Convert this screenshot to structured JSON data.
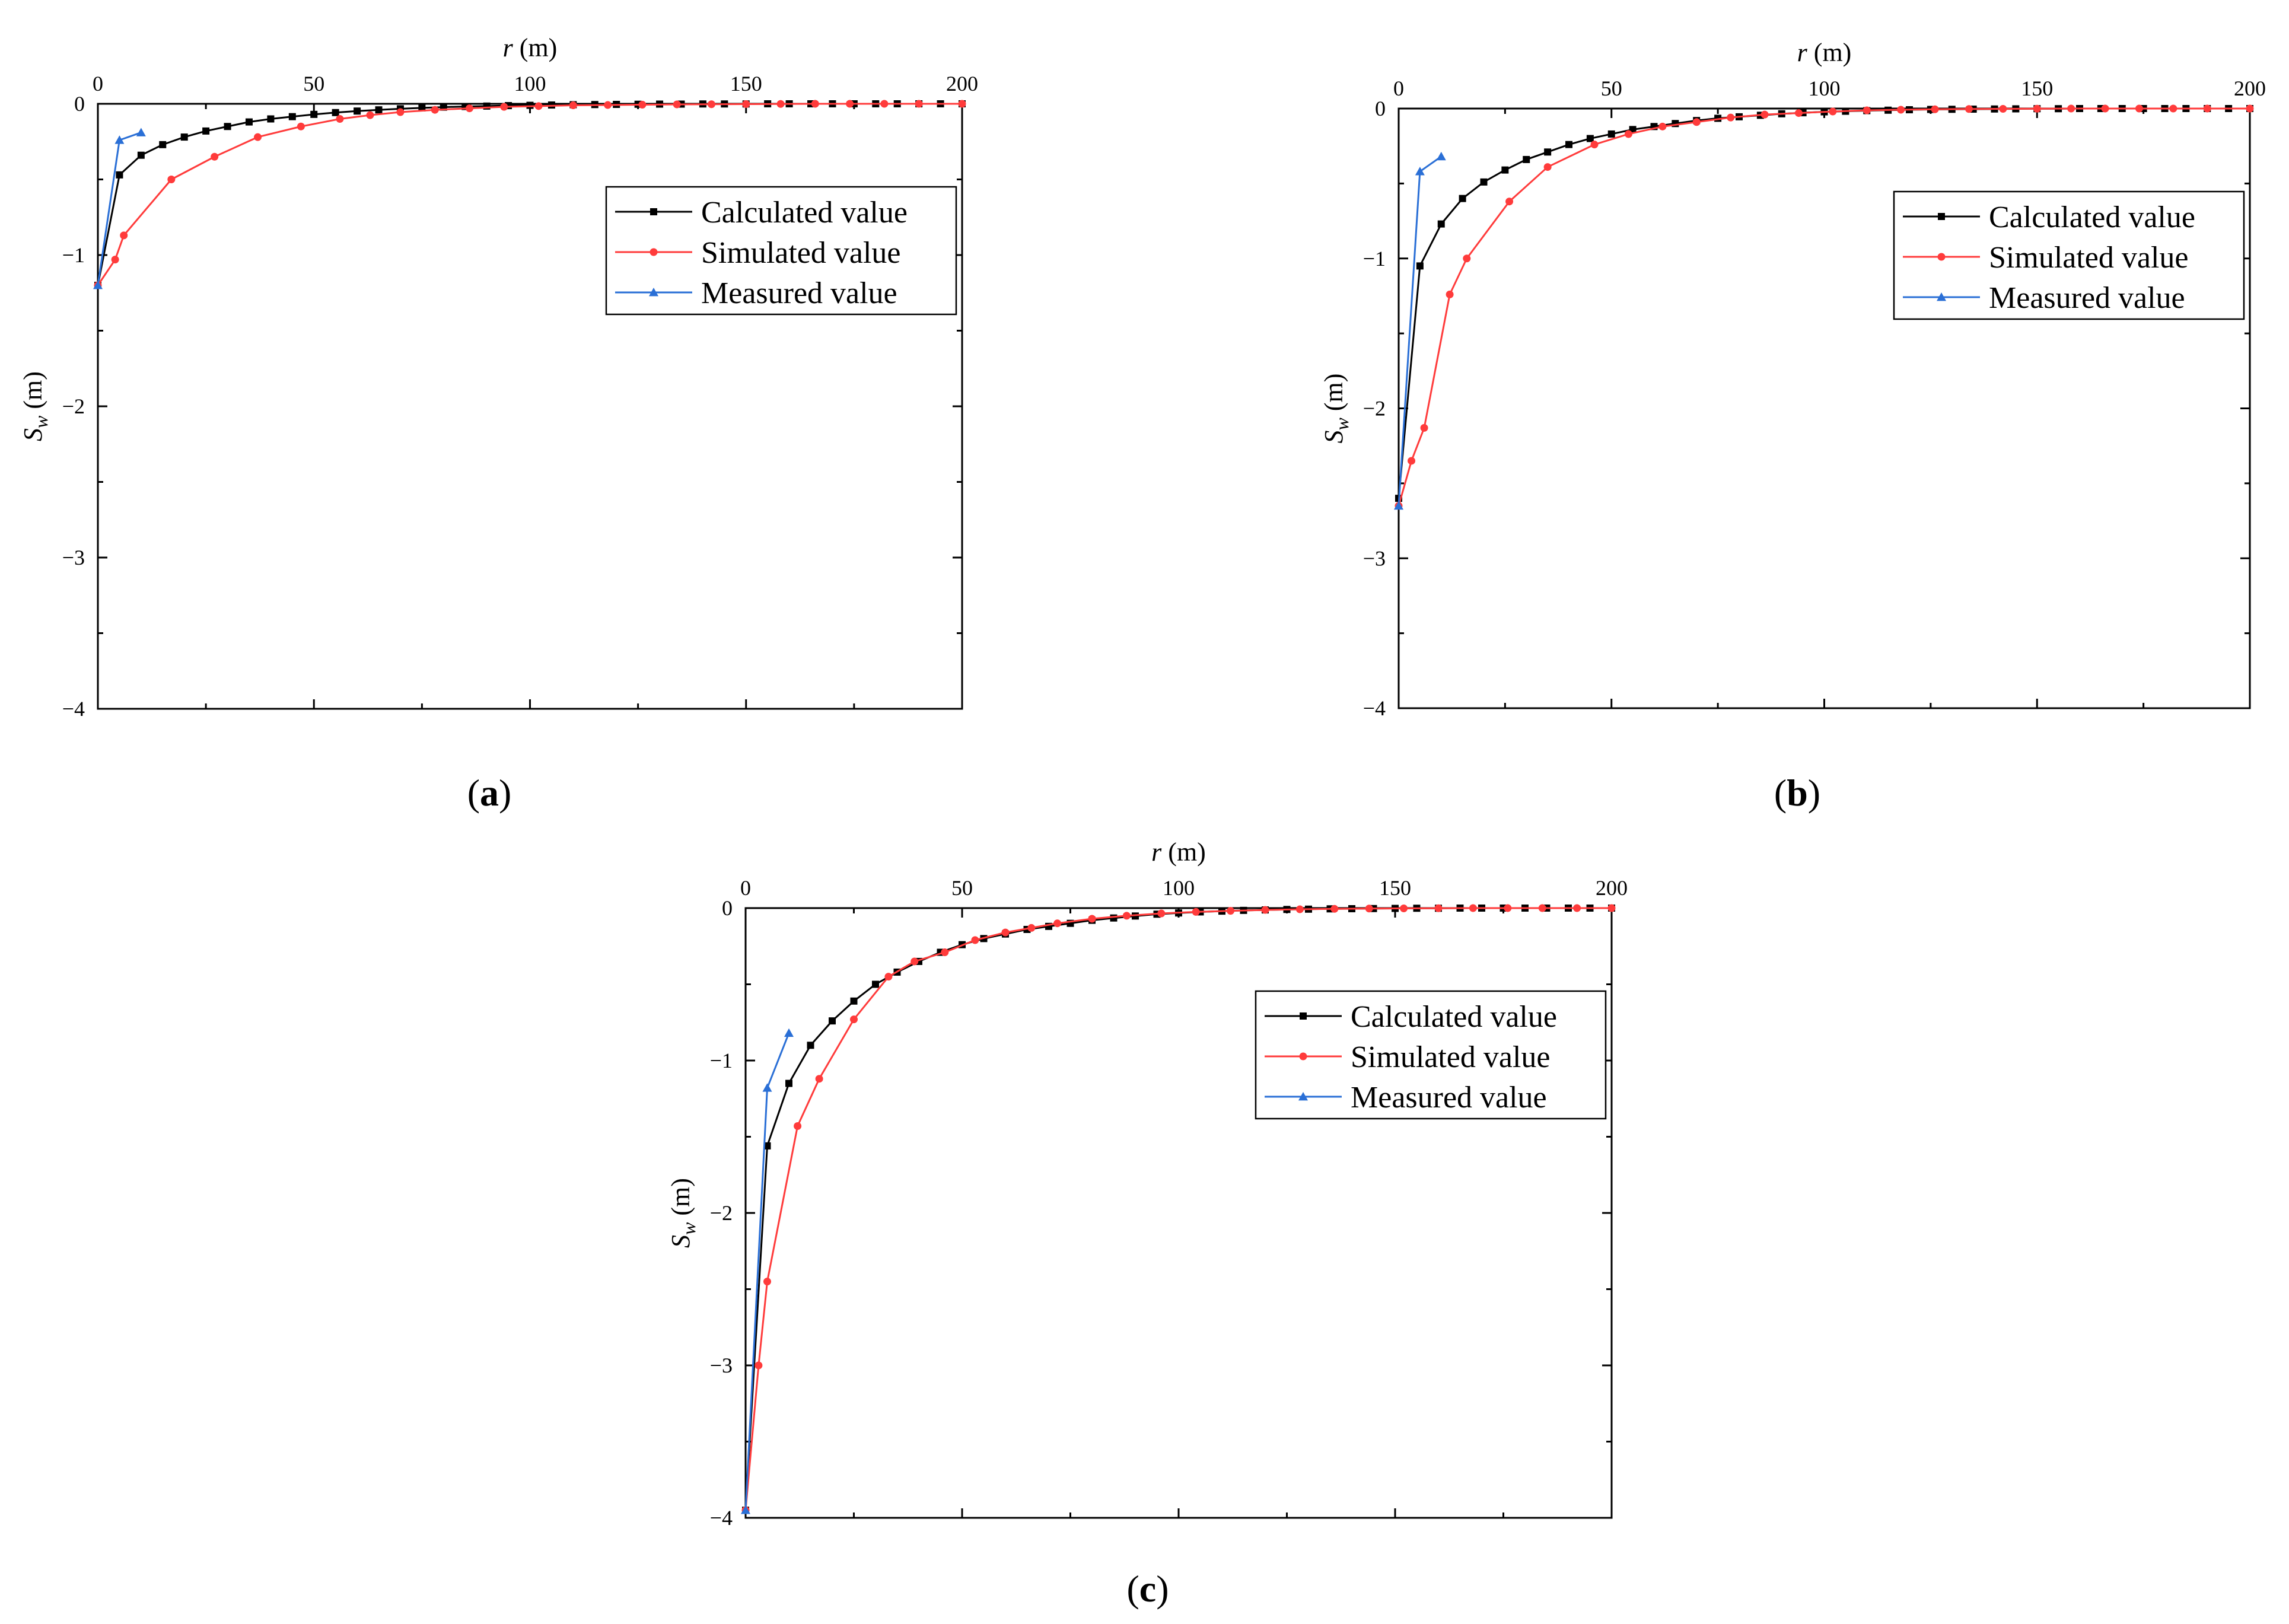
{
  "chart_data": [
    {
      "type": "line",
      "panel_label": "(a)",
      "xlabel": "r (m)",
      "ylabel": "Sw (m)",
      "xlim": [
        0,
        200
      ],
      "ylim": [
        -4,
        0
      ],
      "x_ticks": [
        0,
        50,
        100,
        150,
        200
      ],
      "y_ticks": [
        0,
        -1,
        -2,
        -3,
        -4
      ],
      "x_axis_position": "top",
      "legend_position": "upper-right",
      "grid": false,
      "series": [
        {
          "name": "Calculated value",
          "color": "#000000",
          "marker": "square",
          "x": [
            0,
            5,
            10,
            15,
            20,
            25,
            30,
            35,
            40,
            45,
            50,
            55,
            60,
            65,
            70,
            75,
            80,
            85,
            90,
            95,
            100,
            105,
            110,
            115,
            120,
            125,
            130,
            135,
            140,
            145,
            150,
            155,
            160,
            165,
            170,
            175,
            180,
            185,
            190,
            195,
            200
          ],
          "y": [
            -1.2,
            -0.47,
            -0.34,
            -0.27,
            -0.22,
            -0.18,
            -0.15,
            -0.12,
            -0.1,
            -0.085,
            -0.07,
            -0.058,
            -0.048,
            -0.04,
            -0.033,
            -0.027,
            -0.022,
            -0.018,
            -0.015,
            -0.012,
            -0.01,
            -0.008,
            -0.006,
            -0.005,
            -0.004,
            -0.003,
            -0.002,
            -0.002,
            -0.001,
            -0.001,
            -0.001,
            0,
            0,
            0,
            0,
            0,
            0,
            0,
            0,
            0,
            0
          ]
        },
        {
          "name": "Simulated value",
          "color": "#ff3b3b",
          "marker": "circle",
          "x": [
            0,
            4,
            6,
            17,
            27,
            37,
            47,
            56,
            63,
            70,
            78,
            86,
            94,
            102,
            110,
            118,
            126,
            134,
            142,
            150,
            158,
            166,
            174,
            182,
            190,
            200
          ],
          "y": [
            -1.2,
            -1.03,
            -0.87,
            -0.5,
            -0.35,
            -0.22,
            -0.15,
            -0.1,
            -0.075,
            -0.055,
            -0.04,
            -0.03,
            -0.02,
            -0.015,
            -0.01,
            -0.008,
            -0.006,
            -0.004,
            -0.003,
            -0.002,
            -0.001,
            0,
            0,
            0,
            0,
            0
          ]
        },
        {
          "name": "Measured value",
          "color": "#2a6fd6",
          "marker": "triangle",
          "x": [
            0,
            5,
            10
          ],
          "y": [
            -1.2,
            -0.24,
            -0.19
          ]
        }
      ]
    },
    {
      "type": "line",
      "panel_label": "(b)",
      "xlabel": "r (m)",
      "ylabel": "Sw (m)",
      "xlim": [
        0,
        200
      ],
      "ylim": [
        -4,
        0
      ],
      "x_ticks": [
        0,
        50,
        100,
        150,
        200
      ],
      "y_ticks": [
        0,
        -1,
        -2,
        -3,
        -4
      ],
      "x_axis_position": "top",
      "legend_position": "upper-right",
      "grid": false,
      "series": [
        {
          "name": "Calculated value",
          "color": "#000000",
          "marker": "square",
          "x": [
            0,
            5,
            10,
            15,
            20,
            25,
            30,
            35,
            40,
            45,
            50,
            55,
            60,
            65,
            70,
            75,
            80,
            85,
            90,
            95,
            100,
            105,
            110,
            115,
            120,
            125,
            130,
            135,
            140,
            145,
            150,
            155,
            160,
            165,
            170,
            175,
            180,
            185,
            190,
            195,
            200
          ],
          "y": [
            -2.6,
            -1.05,
            -0.77,
            -0.6,
            -0.49,
            -0.41,
            -0.34,
            -0.29,
            -0.24,
            -0.2,
            -0.17,
            -0.14,
            -0.12,
            -0.1,
            -0.08,
            -0.065,
            -0.055,
            -0.045,
            -0.035,
            -0.028,
            -0.022,
            -0.018,
            -0.014,
            -0.011,
            -0.008,
            -0.006,
            -0.005,
            -0.004,
            -0.003,
            -0.002,
            -0.001,
            -0.001,
            0,
            0,
            0,
            0,
            0,
            0,
            0,
            0,
            0
          ]
        },
        {
          "name": "Simulated value",
          "color": "#ff3b3b",
          "marker": "circle",
          "x": [
            0,
            3,
            6,
            12,
            16,
            26,
            35,
            46,
            54,
            62,
            70,
            78,
            86,
            94,
            102,
            110,
            118,
            126,
            134,
            142,
            150,
            158,
            166,
            174,
            182,
            190,
            200
          ],
          "y": [
            -2.65,
            -2.35,
            -2.13,
            -1.24,
            -1.0,
            -0.62,
            -0.39,
            -0.24,
            -0.17,
            -0.12,
            -0.09,
            -0.06,
            -0.04,
            -0.03,
            -0.02,
            -0.012,
            -0.008,
            -0.005,
            -0.003,
            -0.002,
            -0.001,
            0,
            0,
            0,
            0,
            0,
            0
          ]
        },
        {
          "name": "Measured value",
          "color": "#2a6fd6",
          "marker": "triangle",
          "x": [
            0,
            5,
            10
          ],
          "y": [
            -2.65,
            -0.42,
            -0.32
          ]
        }
      ]
    },
    {
      "type": "line",
      "panel_label": "(c)",
      "xlabel": "r (m)",
      "ylabel": "Sw (m)",
      "xlim": [
        0,
        200
      ],
      "ylim": [
        -4,
        0
      ],
      "x_ticks": [
        0,
        50,
        100,
        150,
        200
      ],
      "y_ticks": [
        0,
        -1,
        -2,
        -3,
        -4
      ],
      "x_axis_position": "top",
      "legend_position": "upper-right",
      "grid": false,
      "series": [
        {
          "name": "Calculated value",
          "color": "#000000",
          "marker": "square",
          "x": [
            0,
            5,
            10,
            15,
            20,
            25,
            30,
            35,
            40,
            45,
            50,
            55,
            60,
            65,
            70,
            75,
            80,
            85,
            90,
            95,
            100,
            105,
            110,
            115,
            120,
            125,
            130,
            135,
            140,
            145,
            150,
            155,
            160,
            165,
            170,
            175,
            180,
            185,
            190,
            195,
            200
          ],
          "y": [
            -3.95,
            -1.56,
            -1.15,
            -0.9,
            -0.74,
            -0.61,
            -0.5,
            -0.42,
            -0.35,
            -0.29,
            -0.24,
            -0.2,
            -0.17,
            -0.14,
            -0.12,
            -0.1,
            -0.08,
            -0.065,
            -0.052,
            -0.04,
            -0.032,
            -0.025,
            -0.02,
            -0.015,
            -0.012,
            -0.009,
            -0.007,
            -0.005,
            -0.004,
            -0.003,
            -0.002,
            -0.001,
            -0.001,
            0,
            0,
            0,
            0,
            0,
            0,
            0,
            0
          ]
        },
        {
          "name": "Simulated value",
          "color": "#ff3b3b",
          "marker": "circle",
          "x": [
            0,
            3,
            5,
            12,
            17,
            25,
            33,
            39,
            46,
            53,
            60,
            66,
            72,
            80,
            88,
            96,
            104,
            112,
            120,
            128,
            136,
            144,
            152,
            160,
            168,
            176,
            184,
            192,
            200
          ],
          "y": [
            -3.95,
            -3.0,
            -2.45,
            -1.43,
            -1.12,
            -0.73,
            -0.45,
            -0.35,
            -0.29,
            -0.21,
            -0.16,
            -0.13,
            -0.1,
            -0.07,
            -0.05,
            -0.035,
            -0.025,
            -0.018,
            -0.012,
            -0.008,
            -0.005,
            -0.003,
            -0.002,
            -0.001,
            0,
            0,
            0,
            0,
            0
          ]
        },
        {
          "name": "Measured value",
          "color": "#2a6fd6",
          "marker": "triangle",
          "x": [
            0,
            5,
            10
          ],
          "y": [
            -3.95,
            -1.18,
            -0.82
          ]
        }
      ]
    }
  ]
}
